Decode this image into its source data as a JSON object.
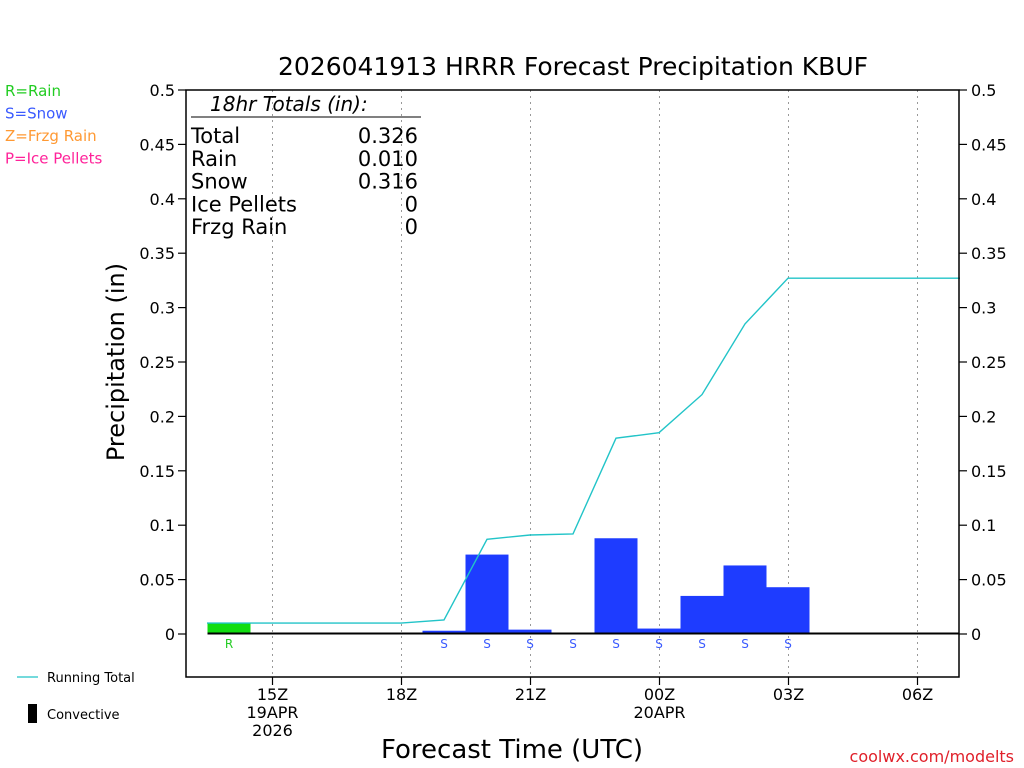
{
  "chart_data": {
    "type": "bar",
    "title": "2026041913 HRRR Forecast Precipitation KBUF",
    "xlabel": "Forecast Time (UTC)",
    "ylabel": "Precipitation (in)",
    "ylim": [
      0,
      0.5
    ],
    "x_hour_range": [
      13,
      31
    ],
    "yticks": [
      {
        "value": 0,
        "label": "0"
      },
      {
        "value": 0.05,
        "label": "0.05"
      },
      {
        "value": 0.1,
        "label": "0.1"
      },
      {
        "value": 0.15,
        "label": "0.15"
      },
      {
        "value": 0.2,
        "label": "0.2"
      },
      {
        "value": 0.25,
        "label": "0.25"
      },
      {
        "value": 0.3,
        "label": "0.3"
      },
      {
        "value": 0.35,
        "label": "0.35"
      },
      {
        "value": 0.4,
        "label": "0.4"
      },
      {
        "value": 0.45,
        "label": "0.45"
      },
      {
        "value": 0.5,
        "label": "0.5"
      }
    ],
    "xticks": [
      {
        "hour": 15,
        "lines": [
          "15Z",
          "19APR",
          "2026"
        ]
      },
      {
        "hour": 18,
        "lines": [
          "18Z"
        ]
      },
      {
        "hour": 21,
        "lines": [
          "21Z"
        ]
      },
      {
        "hour": 24,
        "lines": [
          "00Z",
          "20APR"
        ]
      },
      {
        "hour": 27,
        "lines": [
          "03Z"
        ]
      },
      {
        "hour": 30,
        "lines": [
          "06Z"
        ]
      }
    ],
    "grid": "dotted-vertical",
    "hourly_precip": [
      {
        "hour": 14,
        "value": 0.01,
        "type": "R"
      },
      {
        "hour": 15,
        "value": 0,
        "type": ""
      },
      {
        "hour": 16,
        "value": 0,
        "type": ""
      },
      {
        "hour": 17,
        "value": 0,
        "type": ""
      },
      {
        "hour": 18,
        "value": 0,
        "type": ""
      },
      {
        "hour": 19,
        "value": 0.003,
        "type": "S"
      },
      {
        "hour": 20,
        "value": 0.073,
        "type": "S"
      },
      {
        "hour": 21,
        "value": 0.004,
        "type": "S"
      },
      {
        "hour": 22,
        "value": 0.001,
        "type": "S"
      },
      {
        "hour": 23,
        "value": 0.088,
        "type": "S"
      },
      {
        "hour": 24,
        "value": 0.005,
        "type": "S"
      },
      {
        "hour": 25,
        "value": 0.035,
        "type": "S"
      },
      {
        "hour": 26,
        "value": 0.063,
        "type": "S"
      },
      {
        "hour": 27,
        "value": 0.043,
        "type": "S"
      },
      {
        "hour": 28,
        "value": 0,
        "type": ""
      },
      {
        "hour": 29,
        "value": 0,
        "type": ""
      },
      {
        "hour": 30,
        "value": 0,
        "type": ""
      },
      {
        "hour": 31,
        "value": 0,
        "type": ""
      }
    ],
    "running_total": {
      "name": "Running Total",
      "points": [
        [
          14,
          0.01
        ],
        [
          15,
          0.01
        ],
        [
          16,
          0.01
        ],
        [
          17,
          0.01
        ],
        [
          18,
          0.01
        ],
        [
          19,
          0.013
        ],
        [
          20,
          0.087
        ],
        [
          21,
          0.091
        ],
        [
          22,
          0.092
        ],
        [
          23,
          0.18
        ],
        [
          24,
          0.185
        ],
        [
          25,
          0.22
        ],
        [
          26,
          0.285
        ],
        [
          27,
          0.327
        ],
        [
          28,
          0.327
        ],
        [
          29,
          0.327
        ],
        [
          30,
          0.327
        ],
        [
          31,
          0.327
        ]
      ]
    },
    "totals_box": {
      "heading": "18hr Totals (in):",
      "rows": [
        {
          "label": "Total",
          "value": "0.326"
        },
        {
          "label": "Rain",
          "value": "0.010"
        },
        {
          "label": "Snow",
          "value": "0.316"
        },
        {
          "label": "Ice Pellets",
          "value": "0"
        },
        {
          "label": "Frzg Rain",
          "value": "0"
        }
      ]
    },
    "type_legend": [
      {
        "text": "R=Rain",
        "code": "R",
        "color": "#22cc22"
      },
      {
        "text": "S=Snow",
        "code": "S",
        "color": "#3a5aff"
      },
      {
        "text": "Z=Frzg Rain",
        "code": "Z",
        "color": "#ff9933"
      },
      {
        "text": "P=Ice Pellets",
        "code": "P",
        "color": "#ff2299"
      }
    ],
    "bottom_legend": {
      "running_total_label": "Running Total",
      "convective_label": "Convective"
    },
    "colors": {
      "rain": "#11dd11",
      "snow": "#1e3cff",
      "running_total": "#22c4c8",
      "convective": "#000000"
    },
    "credit": "coolwx.com/modelts"
  }
}
